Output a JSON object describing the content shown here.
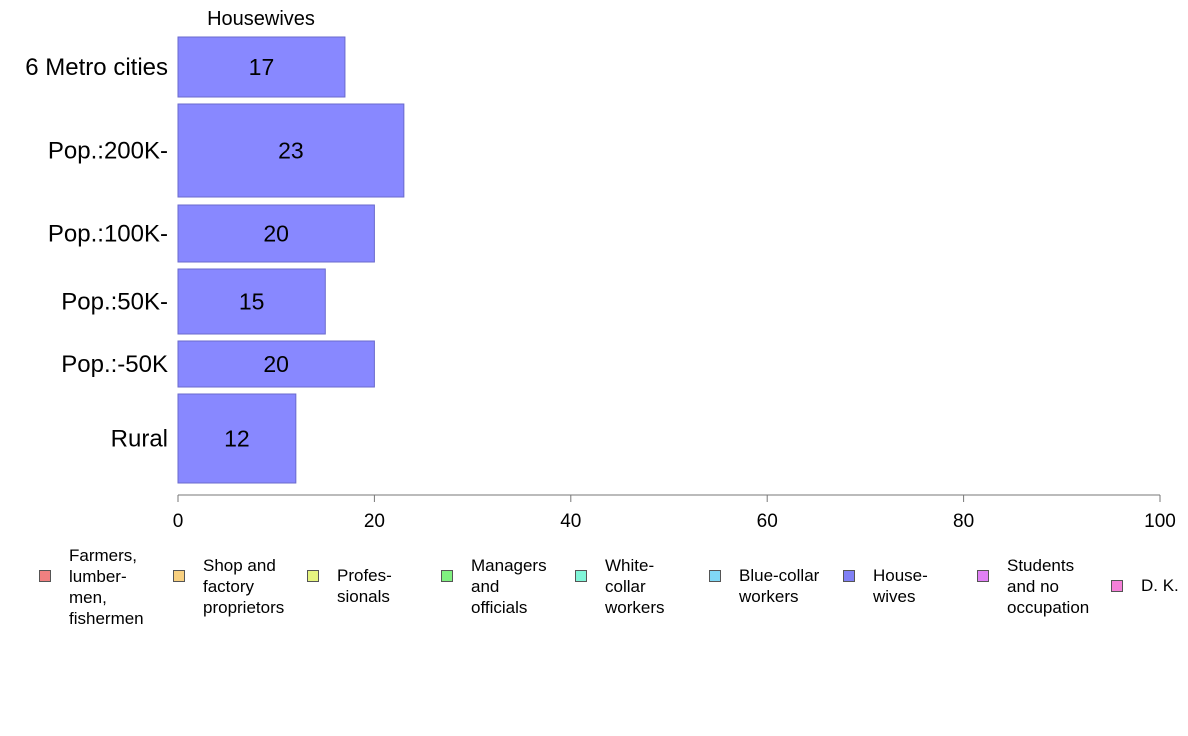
{
  "chart_data": {
    "type": "bar",
    "orientation": "horizontal",
    "title": "Housewives",
    "categories": [
      "6 Metro cities",
      "Pop.:200K-",
      "Pop.:100K-",
      "Pop.:50K-",
      "Pop.:-50K",
      "Rural"
    ],
    "series": [
      {
        "name": "House-\nwives",
        "values": [
          17,
          23,
          20,
          15,
          20,
          12
        ],
        "color": "#8888ff"
      }
    ],
    "xlim": [
      0,
      100
    ],
    "xticks": [
      "0",
      "20",
      "40",
      "60",
      "80",
      "100"
    ],
    "grid": false,
    "legend_position": "bottom",
    "legend": [
      {
        "label": "Farmers,\nlumber-\nmen,\nfishermen",
        "color": "#f08080"
      },
      {
        "label": "Shop and\nfactory\nproprietors",
        "color": "#f8d080"
      },
      {
        "label": "Profes-\nsionals",
        "color": "#e6f580"
      },
      {
        "label": "Managers\nand\nofficials",
        "color": "#80f080"
      },
      {
        "label": "White-\ncollar\nworkers",
        "color": "#80f5d8"
      },
      {
        "label": "Blue-collar\nworkers",
        "color": "#80d8f5"
      },
      {
        "label": "House-\nwives",
        "color": "#8080f5"
      },
      {
        "label": "Students\nand no\noccupation",
        "color": "#e080f5"
      },
      {
        "label": "D. K.",
        "color": "#f580d8"
      }
    ]
  }
}
